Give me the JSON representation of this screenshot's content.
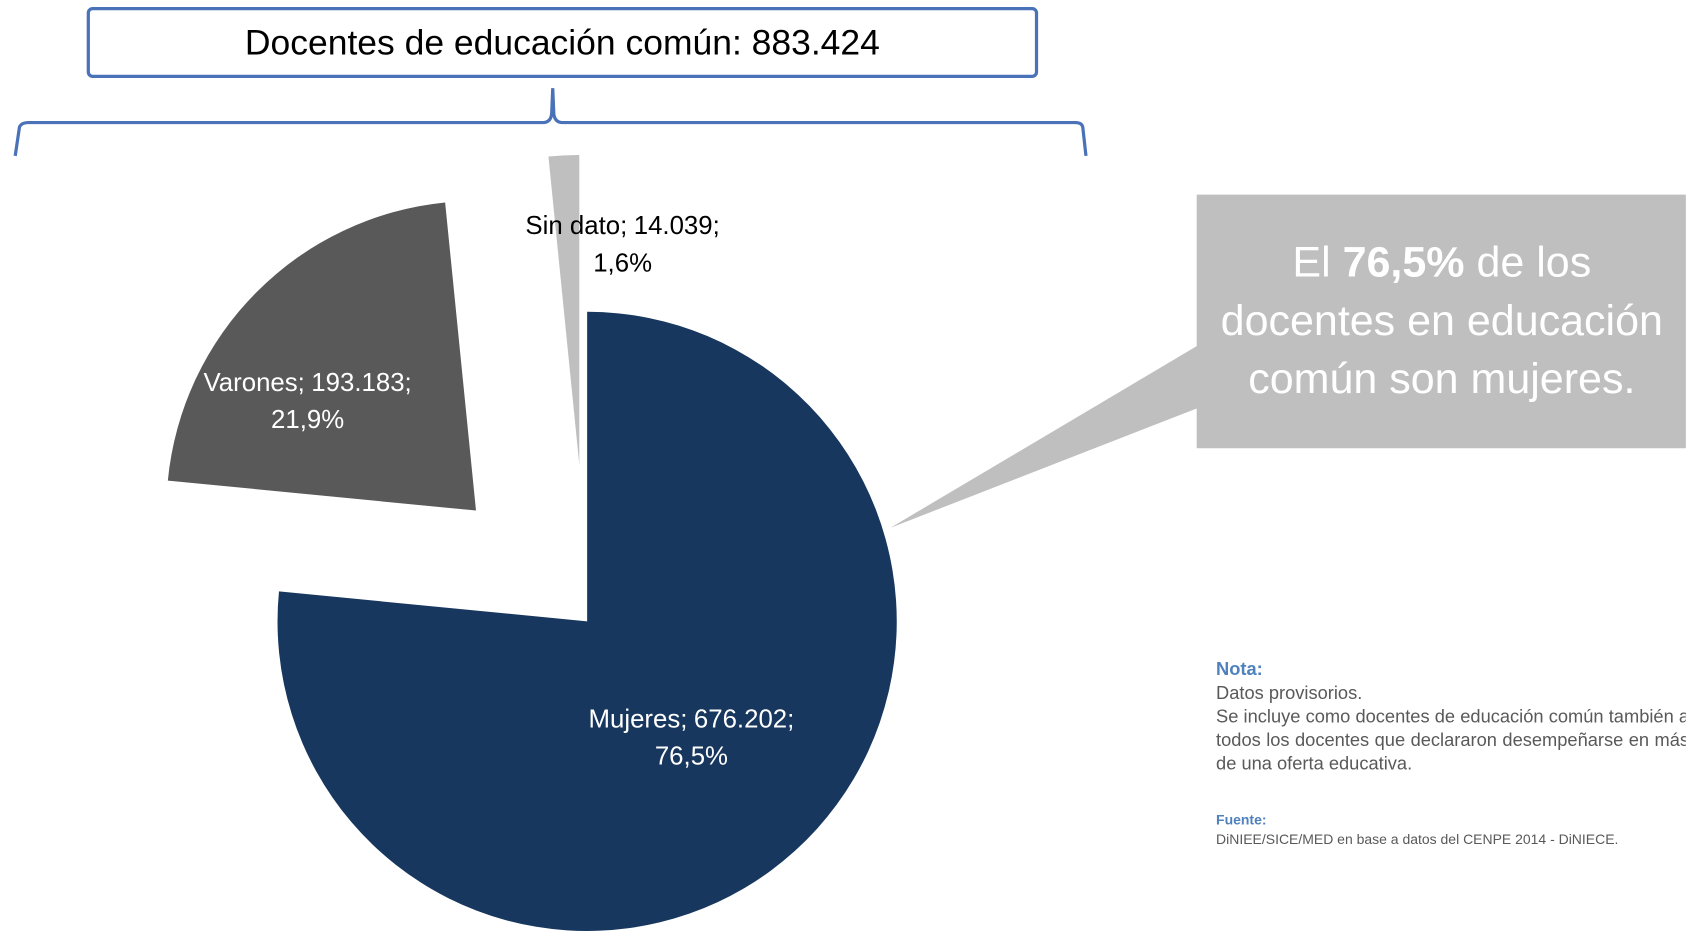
{
  "chart_data": {
    "type": "pie",
    "title": "Docentes de educación común: 883.424",
    "categories": [
      "Mujeres",
      "Varones",
      "Sin dato"
    ],
    "values": [
      676202,
      193183,
      14039
    ],
    "value_labels": [
      "676.202",
      "193.183",
      "14.039"
    ],
    "percents": [
      76.5,
      21.9,
      1.6
    ],
    "percent_labels": [
      "76,5%",
      "21,9%",
      "1,6%"
    ],
    "label_separator": ";",
    "colors": [
      "#17375e",
      "#595959",
      "#bfbfbf"
    ],
    "callout": [
      {
        "prefix": "El ",
        "highlight": "76,5%",
        "suffix": " de los"
      },
      "docentes en educación",
      "común son mujeres."
    ],
    "note": {
      "heading": "Nota:",
      "line1": "Datos provisorios.",
      "paragraph": "Se incluye como docentes de educación común también a todos los docentes que declararon desempeñarse en más de una oferta educativa."
    },
    "source": {
      "heading": "Fuente:",
      "text": "DiNIEE/SICE/MED en base a datos del CENPE 2014 - DiNIECE."
    }
  }
}
